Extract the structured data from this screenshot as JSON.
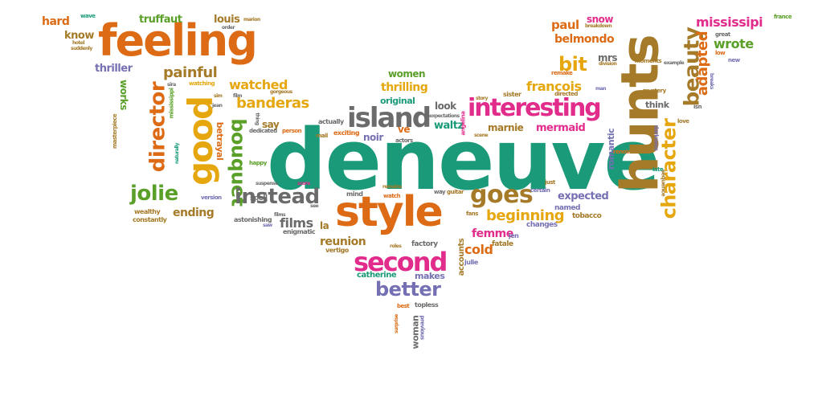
{
  "colors": {
    "orange": "#dd6b15",
    "teal": "#1a9a79",
    "green": "#5aa028",
    "magenta": "#e22c8c",
    "gold": "#e6a70e",
    "brown": "#a57a28",
    "purple": "#7570b3",
    "gray": "#6b6b6b"
  },
  "words": [
    "deneuve",
    "hunts",
    "style",
    "feeling",
    "good",
    "second",
    "interesting",
    "character",
    "beauty",
    "director",
    "island",
    "bouquet",
    "goes",
    "jolie",
    "instead",
    "bit",
    "better",
    "beginning",
    "banderas",
    "painful",
    "watched",
    "mississipi",
    "adapted",
    "femme",
    "wrote",
    "reunion",
    "films",
    "cold",
    "ending",
    "francois",
    "belmondo",
    "paul",
    "snow",
    "women",
    "thrilling",
    "hard",
    "know",
    "truffaut",
    "louis",
    "thriller",
    "mrs",
    "expected",
    "mermaid",
    "marnie",
    "waltz",
    "say",
    "works",
    "noir",
    "romantic",
    "la",
    "look",
    "original",
    "betrayal",
    "catherine",
    "makes",
    "accounts",
    "woman",
    "ve",
    "think",
    "fatale",
    "tobacco",
    "named",
    "changes",
    "jen",
    "julie",
    "factory",
    "vertigo",
    "enigmatic",
    "astonishing",
    "spell",
    "constantly",
    "wealthy",
    "version",
    "mind",
    "watch",
    "exciting",
    "actors",
    "dedicated",
    "person",
    "mail",
    "actually",
    "expectations",
    "remains",
    "roles",
    "topless",
    "best",
    "surprise",
    "previous",
    "guitar",
    "way",
    "angelina",
    "fans",
    "certain",
    "just",
    "story",
    "scene",
    "sister",
    "directed",
    "remake",
    "low",
    "new",
    "great",
    "love",
    "mystery",
    "darkness",
    "sequence",
    "late",
    "renoir",
    "moments",
    "example",
    "breaks",
    "isn",
    "france",
    "division",
    "breakdown",
    "man",
    "wave",
    "marion",
    "order",
    "hotel",
    "suddenly",
    "sira",
    "watching",
    "sim",
    "gorgeous",
    "film",
    "films",
    "jean",
    "thing",
    "happy",
    "naturally",
    "masterpiece",
    "mississippi",
    "suspense",
    "score",
    "see",
    "saw"
  ]
}
